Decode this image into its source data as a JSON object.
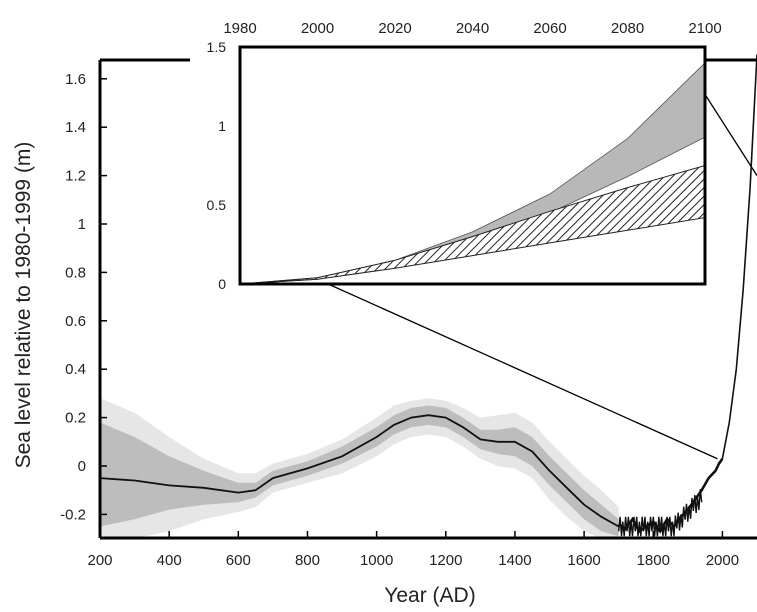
{
  "chart_data": [
    {
      "type": "area",
      "xlabel": "Year (AD)",
      "ylabel": "Sea level relative to 1980-1999 (m)",
      "xlim": [
        200,
        2100
      ],
      "ylim": [
        -0.3,
        1.65
      ],
      "xticks": [
        200,
        400,
        600,
        800,
        1000,
        1200,
        1400,
        1600,
        1800,
        2000
      ],
      "yticks": [
        "-0.2",
        "0",
        "0.2",
        "0.4",
        "0.6",
        "0.8",
        "1",
        "1.2",
        "1.4",
        "1.6"
      ],
      "grid": false,
      "colors": {
        "line": "#111111",
        "band_inner": "#bdbdbd",
        "band_outer": "#e6e6e6"
      },
      "series": [
        {
          "x": [
            200,
            300,
            400,
            500,
            600,
            650,
            700,
            800,
            900,
            1000,
            1050,
            1100,
            1150,
            1200,
            1250,
            1300,
            1350,
            1400,
            1450,
            1500,
            1550,
            1600,
            1650,
            1700
          ],
          "values": [
            -0.05,
            -0.06,
            -0.08,
            -0.09,
            -0.11,
            -0.1,
            -0.05,
            -0.01,
            0.04,
            0.12,
            0.17,
            0.2,
            0.21,
            0.2,
            0.16,
            0.11,
            0.1,
            0.1,
            0.06,
            -0.02,
            -0.09,
            -0.16,
            -0.21,
            -0.25
          ],
          "inner_lower": [
            -0.25,
            -0.22,
            -0.18,
            -0.16,
            -0.15,
            -0.13,
            -0.08,
            -0.04,
            0.01,
            0.08,
            0.13,
            0.16,
            0.17,
            0.16,
            0.12,
            0.07,
            0.05,
            0.04,
            0.0,
            -0.08,
            -0.15,
            -0.22,
            -0.27,
            -0.29
          ],
          "inner_upper": [
            0.18,
            0.12,
            0.04,
            -0.02,
            -0.07,
            -0.07,
            -0.02,
            0.02,
            0.08,
            0.16,
            0.21,
            0.24,
            0.25,
            0.24,
            0.2,
            0.15,
            0.15,
            0.16,
            0.12,
            0.04,
            -0.03,
            -0.1,
            -0.16,
            -0.22
          ],
          "outer_lower": [
            -0.3,
            -0.3,
            -0.27,
            -0.22,
            -0.19,
            -0.17,
            -0.11,
            -0.07,
            -0.03,
            0.04,
            0.09,
            0.12,
            0.13,
            0.12,
            0.08,
            0.03,
            0.0,
            -0.01,
            -0.05,
            -0.14,
            -0.21,
            -0.27,
            -0.3,
            -0.3
          ],
          "outer_upper": [
            0.28,
            0.22,
            0.12,
            0.03,
            -0.03,
            -0.03,
            0.01,
            0.05,
            0.11,
            0.2,
            0.25,
            0.27,
            0.28,
            0.27,
            0.24,
            0.2,
            0.21,
            0.22,
            0.18,
            0.1,
            0.03,
            -0.04,
            -0.1,
            -0.17
          ]
        },
        {
          "x": [
            1700,
            1720,
            1740,
            1760,
            1780,
            1800,
            1820,
            1840,
            1860,
            1880,
            1900,
            1920,
            1940,
            1960,
            1980,
            1990,
            2000
          ],
          "values": [
            -0.24,
            -0.26,
            -0.22,
            -0.27,
            -0.25,
            -0.23,
            -0.27,
            -0.22,
            -0.25,
            -0.21,
            -0.18,
            -0.14,
            -0.1,
            -0.05,
            -0.02,
            0.01,
            0.03
          ]
        },
        {
          "x": [
            2000,
            2020,
            2040,
            2060,
            2080,
            2100
          ],
          "values": [
            0.03,
            0.18,
            0.4,
            0.73,
            1.15,
            1.7
          ]
        }
      ]
    },
    {
      "type": "area",
      "xlim": [
        1980,
        2100
      ],
      "ylim": [
        0,
        1.5
      ],
      "xticks": [
        1980,
        2000,
        2020,
        2040,
        2060,
        2080,
        2100
      ],
      "yticks": [
        "0",
        "0.5",
        "1",
        "1.5"
      ],
      "grid": false,
      "colors": {
        "grey_band": "#b8b8b8",
        "hatch": "#222222"
      },
      "series": [
        {
          "x": [
            1980,
            2000,
            2020,
            2040,
            2060,
            2080,
            2100
          ],
          "lower": [
            0,
            0.03,
            0.12,
            0.26,
            0.45,
            0.68,
            0.93
          ],
          "upper": [
            0,
            0.04,
            0.15,
            0.33,
            0.57,
            0.92,
            1.4
          ]
        },
        {
          "x": [
            1980,
            2000,
            2020,
            2040,
            2060,
            2080,
            2100
          ],
          "lower": [
            0,
            0.03,
            0.1,
            0.18,
            0.26,
            0.34,
            0.42
          ],
          "upper": [
            0,
            0.04,
            0.15,
            0.3,
            0.46,
            0.61,
            0.75
          ]
        }
      ]
    }
  ]
}
